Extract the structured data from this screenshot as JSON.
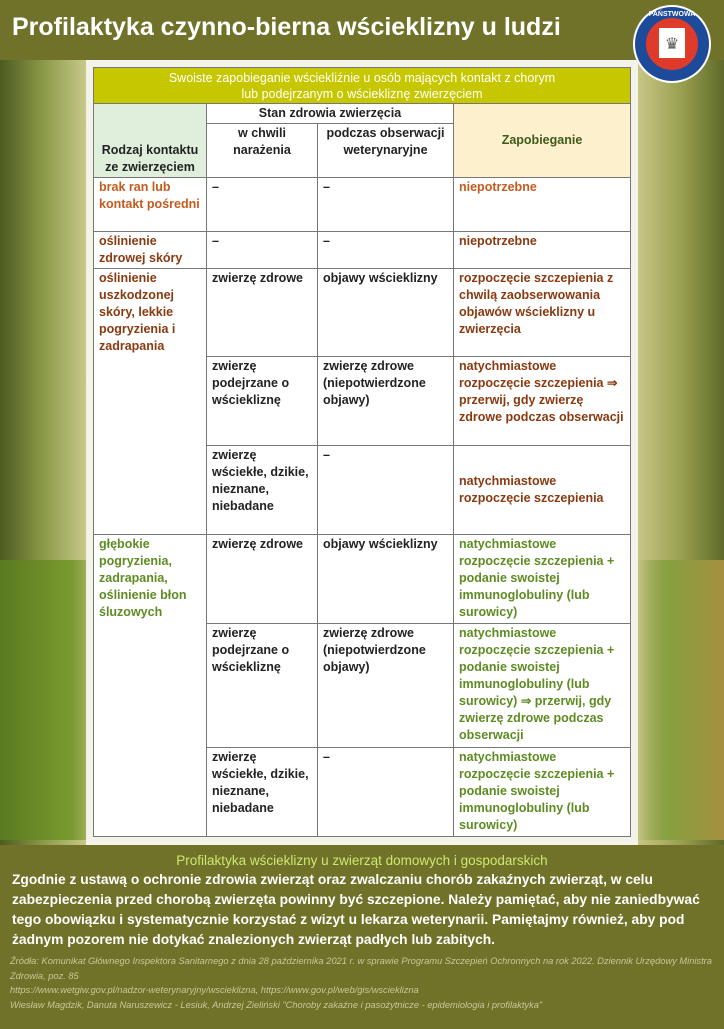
{
  "title": "Profilaktyka czynno-bierna wścieklizny u ludzi",
  "logo": {
    "text_top": "PAŃSTWOWA",
    "text_bottom": "INSPEKCJA SANITARNA",
    "colors": {
      "ring": "#1e4a9a",
      "red": "#e03a2a"
    }
  },
  "table": {
    "caption_line1": "Swoiste zapobieganie wściekliźnie u osób mających kontakt z chorym",
    "caption_line2": "lub podejrzanym o wściekliznę zwierzęciem",
    "col_contact": "Rodzaj kontaktu ze zwierzęciem",
    "col_health": "Stan zdrowia zwierzęcia",
    "col_exposure": "w chwili narażenia",
    "col_observation": "podczas obserwacji weterynaryjne",
    "col_prevention": "Zapobieganie",
    "groups": [
      {
        "contact": "brak ran lub kontakt pośredni",
        "rows": [
          {
            "exposure": "–",
            "observation": "–",
            "prevention": "niepotrzebne"
          }
        ]
      },
      {
        "contact": "oślinienie zdrowej skóry",
        "rows": [
          {
            "exposure": "–",
            "observation": "–",
            "prevention": "niepotrzebne"
          }
        ]
      },
      {
        "contact": "oślinienie uszkodzonej skóry, lekkie pogryzienia i zadrapania",
        "rows": [
          {
            "exposure": "zwierzę zdrowe",
            "observation": "objawy wścieklizny",
            "prevention": "rozpoczęcie szczepienia z chwilą zaobserwowania objawów wścieklizny u zwierzęcia"
          },
          {
            "exposure": "zwierzę podejrzane o wściekliznę",
            "observation": "zwierzę zdrowe (niepotwierdzone objawy)",
            "prevention": "natychmiastowe rozpoczęcie szczepienia ⇒ przerwij, gdy zwierzę zdrowe podczas obserwacji"
          },
          {
            "exposure": "zwierzę wściekłe, dzikie, nieznane, niebadane",
            "observation": "–",
            "prevention": "natychmiastowe rozpoczęcie szczepienia"
          }
        ]
      },
      {
        "contact": "głębokie pogryzienia, zadrapania, oślinienie błon śluzowych",
        "rows": [
          {
            "exposure": "zwierzę zdrowe",
            "observation": "objawy wścieklizny",
            "prevention": "natychmiastowe rozpoczęcie szczepienia + podanie swoistej immunoglobuliny (lub surowicy)"
          },
          {
            "exposure": "zwierzę podejrzane o wściekliznę",
            "observation": "zwierzę zdrowe (niepotwierdzone objawy)",
            "prevention": "natychmiastowe rozpoczęcie szczepienia + podanie swoistej immunoglobuliny (lub surowicy) ⇒ przerwij, gdy zwierzę zdrowe podczas obserwacji"
          },
          {
            "exposure": "zwierzę wściekłe, dzikie, nieznane, niebadane",
            "observation": "–",
            "prevention": "natychmiastowe rozpoczęcie szczepienia + podanie swoistej immunoglobuliny (lub surowicy)"
          }
        ]
      }
    ]
  },
  "footer": {
    "subtitle": "Profilaktyka wścieklizny u zwierząt domowych i gospodarskich",
    "paragraph": "Zgodnie z ustawą o ochronie zdrowia zwierząt oraz zwalczaniu chorób zakaźnych zwierząt, w celu zabezpieczenia przed chorobą zwierzęta powinny być szczepione. Należy pamiętać, aby nie zaniedbywać tego obowiązku i systematycznie korzystać z wizyt u lekarza weterynarii. Pamiętajmy również, aby pod żadnym pozorem nie dotykać znalezionych zwierząt padłych lub zabitych.",
    "source1": "Źródła: Komunikat Głównego Inspektora Sanitarnego z dnia 28 października 2021 r. w sprawie Programu Szczepień Ochronnych na rok 2022. Dziennik Urzędowy Ministra Zdrowia, poz. 85",
    "source2": "https://www.wetgiw.gov.pl/nadzor-weterynaryjny/wscieklizna, https://www.gov.pl/web/gis/wscieklizna",
    "source3": "Wiesław Magdzik, Danuta Naruszewicz - Lesiuk, Andrzej Zieliński \"Choroby zakaźne i pasożytnicze - epidemiologia i profilaktyka\""
  }
}
